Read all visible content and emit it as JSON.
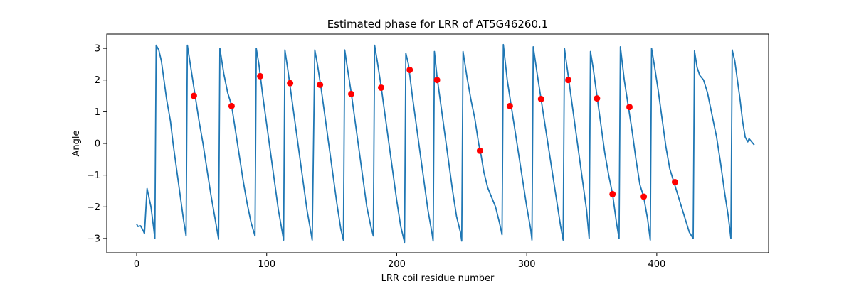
{
  "chart_data": {
    "type": "line",
    "title": "Estimated phase for LRR of AT5G46260.1",
    "xlabel": "LRR coil residue number",
    "ylabel": "Angle",
    "xlim": [
      -23,
      486
    ],
    "ylim": [
      -3.45,
      3.45
    ],
    "xticks": [
      0,
      100,
      200,
      300,
      400
    ],
    "yticks": [
      -3,
      -2,
      -1,
      0,
      1,
      2,
      3
    ],
    "grid": false,
    "legend": "none",
    "colors": {
      "line": "#1f77b4",
      "markers": "#ff0000"
    },
    "series": [
      {
        "type": "line",
        "points": [
          [
            0,
            -2.55
          ],
          [
            1,
            -2.62
          ],
          [
            3,
            -2.6
          ],
          [
            5,
            -2.75
          ],
          [
            6,
            -2.85
          ],
          [
            8,
            -1.42
          ],
          [
            11,
            -2.0
          ],
          [
            13,
            -2.65
          ],
          [
            14,
            -3.0
          ],
          [
            15,
            3.1
          ],
          [
            17,
            2.95
          ],
          [
            19,
            2.6
          ],
          [
            21,
            2.0
          ],
          [
            23,
            1.4
          ],
          [
            26,
            0.7
          ],
          [
            28,
            0.0
          ],
          [
            30,
            -0.6
          ],
          [
            32,
            -1.2
          ],
          [
            34,
            -1.8
          ],
          [
            36,
            -2.4
          ],
          [
            38,
            -2.92
          ],
          [
            39,
            3.1
          ],
          [
            42,
            2.3
          ],
          [
            45,
            1.5
          ],
          [
            48,
            0.7
          ],
          [
            51,
            0.0
          ],
          [
            54,
            -0.8
          ],
          [
            57,
            -1.6
          ],
          [
            60,
            -2.3
          ],
          [
            63,
            -3.02
          ],
          [
            64,
            3.0
          ],
          [
            67,
            2.2
          ],
          [
            70,
            1.6
          ],
          [
            73,
            1.2
          ],
          [
            76,
            0.4
          ],
          [
            79,
            -0.4
          ],
          [
            82,
            -1.2
          ],
          [
            85,
            -1.9
          ],
          [
            88,
            -2.5
          ],
          [
            91,
            -2.92
          ],
          [
            92,
            3.0
          ],
          [
            94,
            2.5
          ],
          [
            97,
            1.5
          ],
          [
            100,
            0.6
          ],
          [
            103,
            -0.3
          ],
          [
            106,
            -1.2
          ],
          [
            109,
            -2.1
          ],
          [
            112,
            -2.8
          ],
          [
            113,
            -3.05
          ],
          [
            114,
            2.95
          ],
          [
            116,
            2.4
          ],
          [
            119,
            1.5
          ],
          [
            122,
            0.6
          ],
          [
            125,
            -0.3
          ],
          [
            128,
            -1.2
          ],
          [
            131,
            -2.1
          ],
          [
            134,
            -2.8
          ],
          [
            135,
            -3.05
          ],
          [
            137,
            2.95
          ],
          [
            139,
            2.5
          ],
          [
            142,
            1.7
          ],
          [
            145,
            0.8
          ],
          [
            148,
            -0.1
          ],
          [
            151,
            -1.0
          ],
          [
            154,
            -1.9
          ],
          [
            157,
            -2.7
          ],
          [
            159,
            -3.05
          ],
          [
            160,
            2.95
          ],
          [
            162,
            2.4
          ],
          [
            165,
            1.6
          ],
          [
            168,
            0.7
          ],
          [
            171,
            -0.2
          ],
          [
            174,
            -1.1
          ],
          [
            177,
            -2.0
          ],
          [
            180,
            -2.6
          ],
          [
            182,
            -2.92
          ],
          [
            183,
            3.1
          ],
          [
            185,
            2.6
          ],
          [
            188,
            1.8
          ],
          [
            191,
            0.9
          ],
          [
            194,
            0.0
          ],
          [
            197,
            -0.9
          ],
          [
            200,
            -1.8
          ],
          [
            203,
            -2.6
          ],
          [
            206,
            -3.12
          ],
          [
            207,
            2.85
          ],
          [
            209,
            2.5
          ],
          [
            212,
            1.5
          ],
          [
            215,
            0.6
          ],
          [
            218,
            -0.3
          ],
          [
            221,
            -1.2
          ],
          [
            224,
            -2.1
          ],
          [
            227,
            -2.8
          ],
          [
            228,
            -3.08
          ],
          [
            229,
            2.9
          ],
          [
            231,
            2.1
          ],
          [
            234,
            1.2
          ],
          [
            237,
            0.3
          ],
          [
            240,
            -0.6
          ],
          [
            243,
            -1.5
          ],
          [
            246,
            -2.3
          ],
          [
            249,
            -2.8
          ],
          [
            250,
            -3.08
          ],
          [
            251,
            2.9
          ],
          [
            254,
            2.1
          ],
          [
            257,
            1.4
          ],
          [
            260,
            0.8
          ],
          [
            263,
            0.0
          ],
          [
            265,
            -0.4
          ],
          [
            267,
            -0.9
          ],
          [
            270,
            -1.4
          ],
          [
            273,
            -1.7
          ],
          [
            276,
            -2.0
          ],
          [
            279,
            -2.5
          ],
          [
            281,
            -2.88
          ],
          [
            282,
            3.12
          ],
          [
            285,
            2.0
          ],
          [
            288,
            1.2
          ],
          [
            291,
            0.4
          ],
          [
            294,
            -0.4
          ],
          [
            297,
            -1.2
          ],
          [
            300,
            -2.0
          ],
          [
            303,
            -2.7
          ],
          [
            304,
            -3.05
          ],
          [
            305,
            3.05
          ],
          [
            308,
            2.2
          ],
          [
            311,
            1.4
          ],
          [
            314,
            0.6
          ],
          [
            317,
            -0.2
          ],
          [
            320,
            -1.0
          ],
          [
            323,
            -1.8
          ],
          [
            326,
            -2.6
          ],
          [
            328,
            -3.05
          ],
          [
            329,
            3.0
          ],
          [
            331,
            2.4
          ],
          [
            334,
            1.5
          ],
          [
            337,
            0.6
          ],
          [
            340,
            -0.3
          ],
          [
            343,
            -1.2
          ],
          [
            346,
            -2.1
          ],
          [
            348,
            -3.0
          ],
          [
            349,
            2.9
          ],
          [
            351,
            2.4
          ],
          [
            354,
            1.5
          ],
          [
            357,
            0.6
          ],
          [
            360,
            -0.3
          ],
          [
            363,
            -1.0
          ],
          [
            366,
            -1.6
          ],
          [
            369,
            -2.5
          ],
          [
            371,
            -3.0
          ],
          [
            372,
            3.05
          ],
          [
            375,
            2.0
          ],
          [
            378,
            1.2
          ],
          [
            381,
            0.4
          ],
          [
            384,
            -0.5
          ],
          [
            387,
            -1.3
          ],
          [
            390,
            -1.7
          ],
          [
            393,
            -2.4
          ],
          [
            395,
            -3.05
          ],
          [
            396,
            3.0
          ],
          [
            398,
            2.5
          ],
          [
            401,
            1.7
          ],
          [
            404,
            0.8
          ],
          [
            407,
            -0.1
          ],
          [
            410,
            -0.8
          ],
          [
            413,
            -1.2
          ],
          [
            416,
            -1.6
          ],
          [
            419,
            -2.0
          ],
          [
            422,
            -2.4
          ],
          [
            425,
            -2.8
          ],
          [
            428,
            -3.0
          ],
          [
            429,
            2.92
          ],
          [
            431,
            2.4
          ],
          [
            433,
            2.15
          ],
          [
            436,
            2.0
          ],
          [
            439,
            1.6
          ],
          [
            441,
            1.2
          ],
          [
            443,
            0.8
          ],
          [
            446,
            0.2
          ],
          [
            449,
            -0.6
          ],
          [
            452,
            -1.5
          ],
          [
            455,
            -2.3
          ],
          [
            457,
            -3.0
          ],
          [
            458,
            2.95
          ],
          [
            460,
            2.6
          ],
          [
            462,
            2.0
          ],
          [
            464,
            1.4
          ],
          [
            466,
            0.7
          ],
          [
            468,
            0.2
          ],
          [
            470,
            0.05
          ],
          [
            471,
            0.15
          ],
          [
            473,
            0.05
          ],
          [
            475,
            -0.05
          ]
        ]
      },
      {
        "type": "scatter",
        "points": [
          [
            44,
            1.5
          ],
          [
            73,
            1.18
          ],
          [
            95,
            2.12
          ],
          [
            118,
            1.9
          ],
          [
            141,
            1.85
          ],
          [
            165,
            1.56
          ],
          [
            188,
            1.76
          ],
          [
            210,
            2.32
          ],
          [
            231,
            2.0
          ],
          [
            264,
            -0.23
          ],
          [
            287,
            1.18
          ],
          [
            311,
            1.4
          ],
          [
            332,
            2.0
          ],
          [
            354,
            1.42
          ],
          [
            366,
            -1.6
          ],
          [
            379,
            1.15
          ],
          [
            390,
            -1.68
          ],
          [
            414,
            -1.22
          ]
        ]
      }
    ]
  }
}
